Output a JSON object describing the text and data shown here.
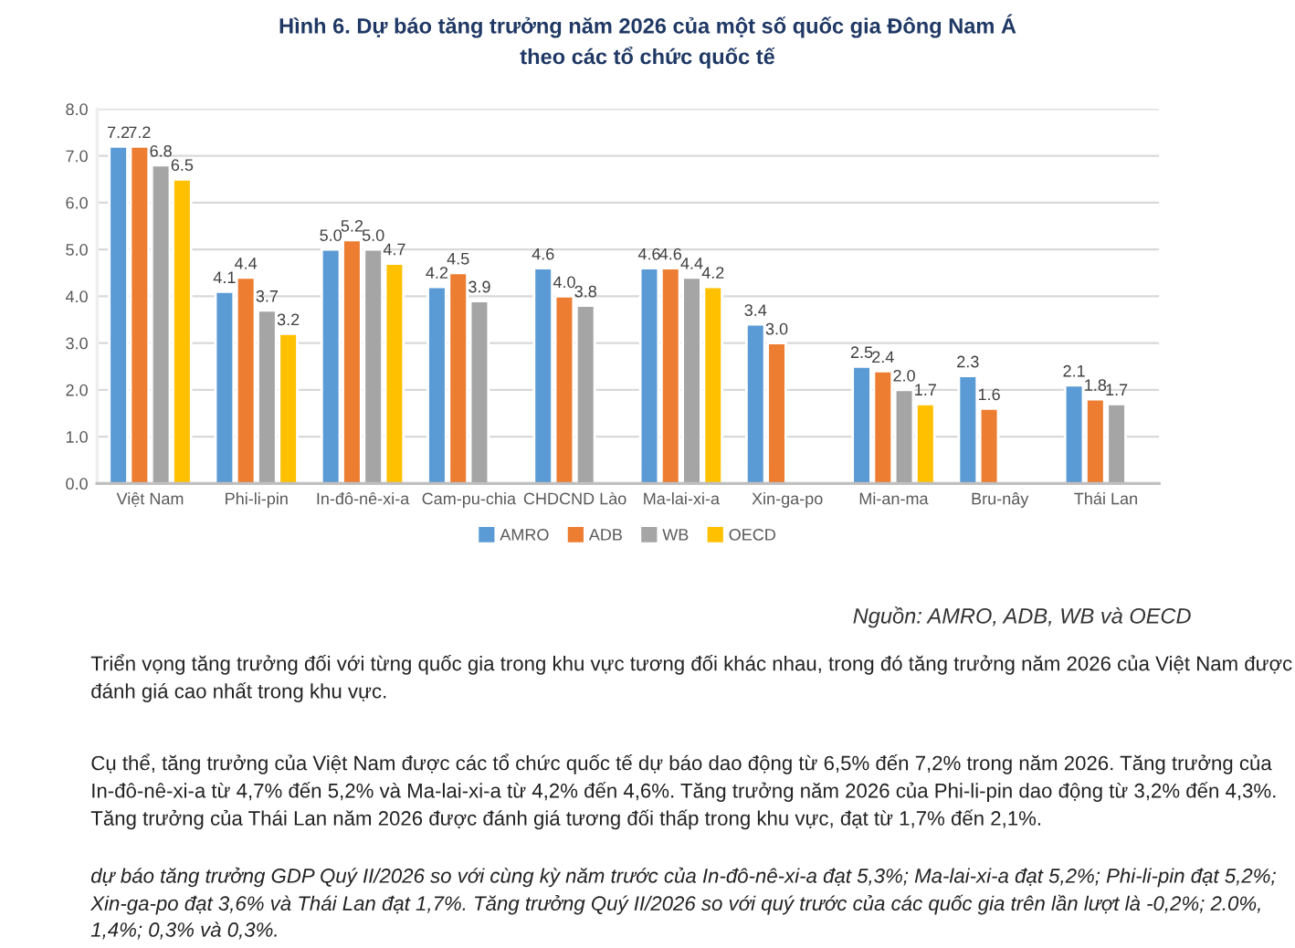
{
  "chart_data": {
    "type": "bar",
    "title": "Hình 6. Dự báo tăng trưởng năm 2026 của một số quốc gia Đông Nam Á\ntheo các tổ chức quốc tế",
    "categories": [
      "Việt Nam",
      "Phi-li-pin",
      "In-đô-nê-xi-a",
      "Cam-pu-chia",
      "CHDCND Lào",
      "Ma-lai-xi-a",
      "Xin-ga-po",
      "Mi-an-ma",
      "Bru-nây",
      "Thái Lan"
    ],
    "series": [
      {
        "name": "AMRO",
        "color": "#5b9bd5",
        "values": [
          7.2,
          4.1,
          5,
          4.2,
          4.6,
          4.6,
          3.4,
          2.5,
          2.3,
          2.1
        ],
        "value_labels": [
          "7.2",
          "4.1",
          "5.0",
          "4.2",
          "4.6",
          "4.6",
          "3.4",
          "2.5",
          "2.3",
          "2.1"
        ]
      },
      {
        "name": "ADB",
        "color": "#ed7d31",
        "values": [
          7.2,
          4.4,
          5.2,
          4.5,
          4,
          4.6,
          3,
          2.4,
          1.6,
          1.8
        ],
        "value_labels": [
          "7.2",
          "4.4",
          "5.2",
          "4.5",
          "4.0",
          "4.6",
          "3.0",
          "2.4",
          "1.6",
          "1.8"
        ]
      },
      {
        "name": "WB",
        "color": "#a5a5a5",
        "values": [
          6.8,
          3.7,
          5,
          3.9,
          3.8,
          4.4,
          null,
          2,
          null,
          1.7
        ],
        "value_labels": [
          "6.8",
          "3.7",
          "5.0",
          "3.9",
          "3.8",
          "4.4",
          null,
          "2.0",
          null,
          "1.7"
        ]
      },
      {
        "name": "OECD",
        "color": "#ffc000",
        "values": [
          6.5,
          3.2,
          4.7,
          null,
          null,
          4.2,
          null,
          1.7,
          null,
          null
        ],
        "value_labels": [
          "6.5",
          "3.2",
          "4.7",
          null,
          null,
          "4.2",
          null,
          "1.7",
          null,
          null
        ]
      }
    ],
    "ylim": [
      0,
      8
    ],
    "yticks": [
      {
        "value": 0,
        "label": "0.0"
      },
      {
        "value": 1,
        "label": "1.0"
      },
      {
        "value": 2,
        "label": "2.0"
      },
      {
        "value": 3,
        "label": "3.0"
      },
      {
        "value": 4,
        "label": "4.0"
      },
      {
        "value": 5,
        "label": "5.0"
      },
      {
        "value": 6,
        "label": "6.0"
      },
      {
        "value": 7,
        "label": "7.0"
      },
      {
        "value": 8,
        "label": "8.0"
      }
    ],
    "grid": "y",
    "legend": "bottom",
    "annotations": [
      "Nguồn: AMRO, ADB, WB và OECD",
      "Triển vọng tăng trưởng đối với từng quốc gia trong khu vực tương đối khác nhau, trong đó tăng trưởng năm 2026 của Việt Nam được đánh giá cao nhất trong khu vực.",
      "Cụ thể, tăng trưởng của Việt Nam được các tổ chức quốc tế dự báo dao động từ 6,5% đến 7,2% trong năm 2026. Tăng trưởng của In-đô-nê-xi-a từ 4,7% đến 5,2% và Ma-lai-xi-a từ 4,2% đến 4,6%. Tăng trưởng năm 2026 của Phi-li-pin dao động từ 3,2% đến 4,3%. Tăng trưởng của Thái Lan năm 2026 được đánh giá tương đối thấp trong khu vực, đạt từ 1,7% đến 2,1%.",
      "dự báo tăng trưởng GDP Quý II/2026 so với cùng kỳ năm trước của In-đô-nê-xi-a đạt 5,3%; Ma-lai-xi-a đạt 5,2%; Phi-li-pin đạt 5,2%; Xin-ga-po đạt 3,6% và Thái Lan đạt 1,7%. Tăng trưởng Quý II/2026 so với quý trước của các quốc gia trên lần lượt là -0,2%; 2.0%, 1,4%; 0,3% và 0,3%."
    ]
  }
}
